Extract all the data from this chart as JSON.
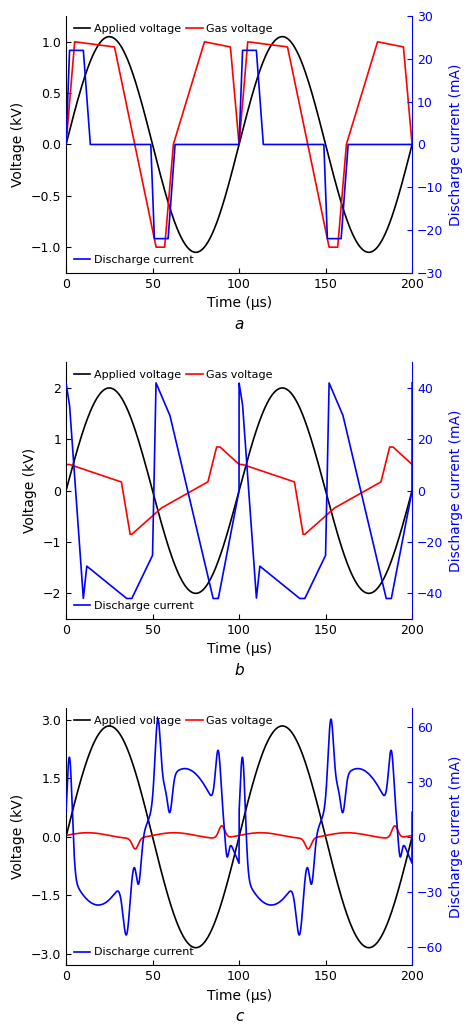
{
  "panels": [
    {
      "label": "a",
      "ylim_left": [
        -1.25,
        1.25
      ],
      "ylim_right": [
        -30,
        30
      ],
      "yticks_left": [
        -1.0,
        -0.5,
        0.0,
        0.5,
        1.0
      ],
      "yticks_right": [
        -30,
        -20,
        -10,
        0,
        10,
        20,
        30
      ],
      "ylabel_left": "Voltage (kV)",
      "ylabel_right": "Discharge current (mA)",
      "applied_amp": 1.05,
      "current_amp": 22.0
    },
    {
      "label": "b",
      "ylim_left": [
        -2.5,
        2.5
      ],
      "ylim_right": [
        -50,
        50
      ],
      "yticks_left": [
        -2,
        -1,
        0,
        1,
        2
      ],
      "yticks_right": [
        -40,
        -20,
        0,
        20,
        40
      ],
      "ylabel_left": "Voltage (kV)",
      "ylabel_right": "Discharge current (mA)",
      "applied_amp": 2.0,
      "current_amp": 42.0
    },
    {
      "label": "c",
      "ylim_left": [
        -3.3,
        3.3
      ],
      "ylim_right": [
        -70,
        70
      ],
      "yticks_left": [
        -3.0,
        -1.5,
        0.0,
        1.5,
        3.0
      ],
      "yticks_right": [
        -60,
        -30,
        0,
        30,
        60
      ],
      "ylabel_left": "Voltage (kV)",
      "ylabel_right": "Discharge current (mA)",
      "applied_amp": 2.85,
      "current_amp": 62.0
    }
  ],
  "xlabel": "Time (μs)",
  "xlim": [
    0,
    200
  ],
  "xticks": [
    0,
    50,
    100,
    150,
    200
  ],
  "black_color": "#000000",
  "red_color": "#ff0000",
  "blue_color": "#0000ff",
  "legend_applied": "Applied voltage",
  "legend_gas": "Gas voltage",
  "legend_current": "Discharge current",
  "background_color": "#ffffff",
  "linewidth": 1.2
}
